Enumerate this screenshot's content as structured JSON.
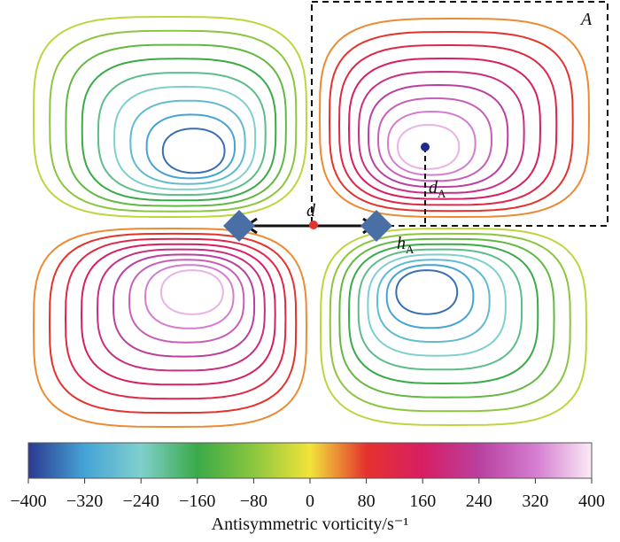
{
  "chart_data": {
    "type": "contour",
    "levels": [
      -360,
      -320,
      -280,
      -240,
      -200,
      -160,
      -120,
      -80,
      -40,
      40,
      80,
      120,
      160,
      200,
      240,
      280,
      320,
      360
    ],
    "clim": [
      -400,
      400
    ],
    "colormap": [
      "#2b3990",
      "#45a4d6",
      "#7fd0cc",
      "#3aaa48",
      "#8bc63f",
      "#f2e43a",
      "#e5322d",
      "#d81e63",
      "#b9409f",
      "#d47dd0",
      "#fbeaf6"
    ],
    "cticks": [
      {
        "value": -400,
        "label": "−400"
      },
      {
        "value": -320,
        "label": "−320"
      },
      {
        "value": -240,
        "label": "−240"
      },
      {
        "value": -160,
        "label": "−160"
      },
      {
        "value": -80,
        "label": "−80"
      },
      0,
      80,
      160,
      240,
      320,
      400
    ],
    "colorbar_label": "Antisymmetric vorticity/s⁻¹",
    "annotations": {
      "region": "A",
      "distance": "d",
      "d_main": "d",
      "d_sub": "A",
      "h_main": "h",
      "h_sub": "A"
    }
  }
}
